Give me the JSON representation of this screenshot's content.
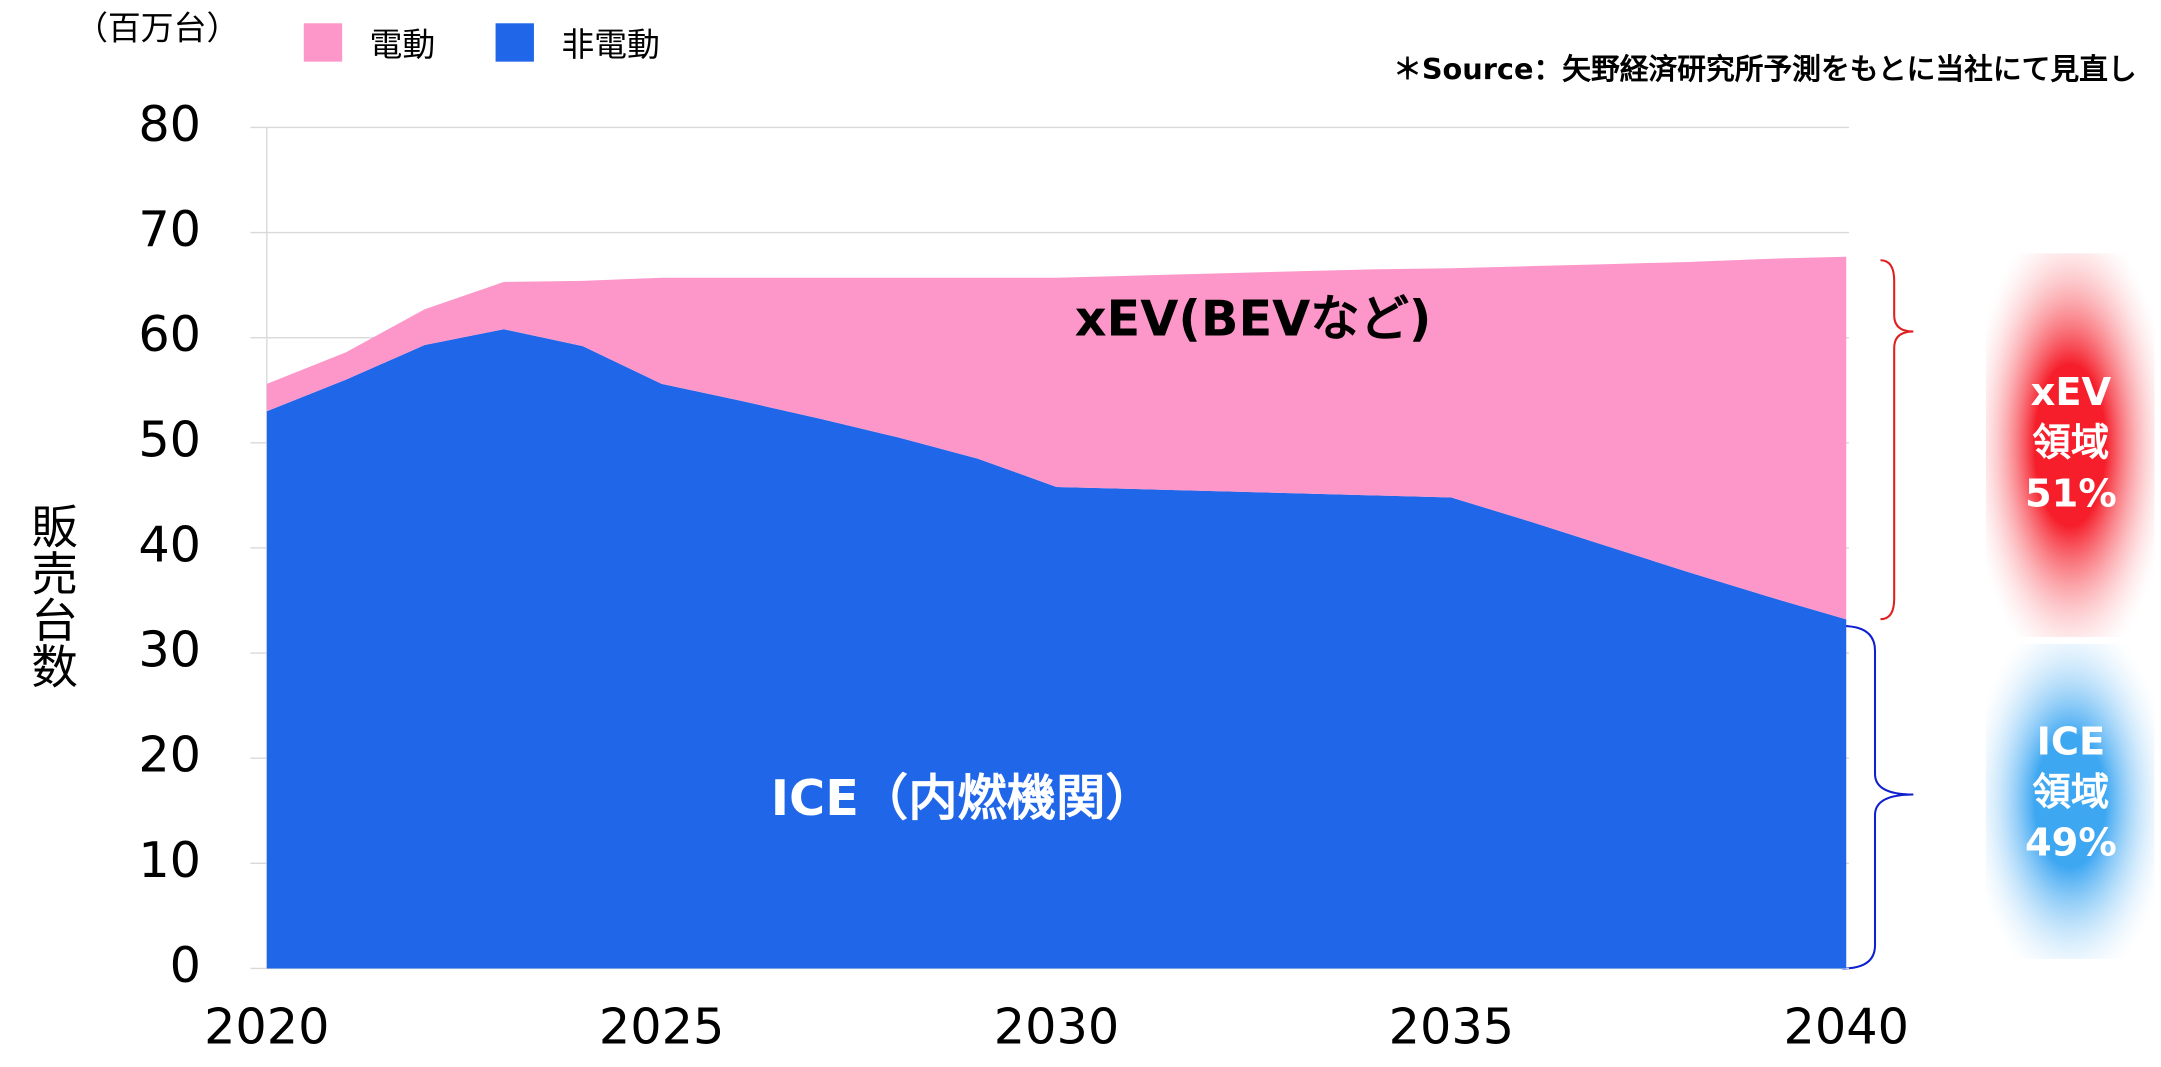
{
  "chart_data": {
    "type": "stacked_area",
    "unit_label": "（百万台）",
    "source": "＊Source：矢野経済研究所予測をもとに当社にて見直し",
    "y_label": "販売台数",
    "x": [
      2020,
      2021,
      2022,
      2023,
      2024,
      2025,
      2026,
      2027,
      2028,
      2029,
      2030,
      2031,
      2032,
      2033,
      2034,
      2035,
      2036,
      2037,
      2038,
      2039,
      2040
    ],
    "series": [
      {
        "name": "非電動",
        "color": "#1f66e8",
        "values": [
          53.0,
          56.0,
          59.3,
          60.8,
          59.2,
          55.6,
          54.0,
          52.3,
          50.5,
          48.5,
          45.8,
          45.6,
          45.4,
          45.2,
          45.0,
          44.8,
          42.5,
          40.1,
          37.7,
          35.4,
          33.2
        ]
      },
      {
        "name": "電動",
        "color": "#fd96c9",
        "values": [
          2.6,
          2.6,
          3.4,
          4.5,
          6.2,
          10.1,
          11.7,
          13.4,
          15.2,
          17.2,
          19.9,
          20.3,
          20.7,
          21.1,
          21.5,
          21.8,
          24.3,
          26.9,
          29.5,
          32.1,
          34.5
        ]
      }
    ],
    "legend_order": [
      1,
      0
    ],
    "xlim": [
      2020,
      2040
    ],
    "xticks": [
      2020,
      2025,
      2030,
      2035,
      2040
    ],
    "ylim": [
      0,
      80
    ],
    "yticks": [
      0,
      10,
      20,
      30,
      40,
      50,
      60,
      70,
      80
    ],
    "grid": true,
    "area_labels": [
      "ICE（内燃機関）",
      "xEV(BEVなど)"
    ],
    "side_labels": [
      [
        "xEV",
        "領域",
        "51%"
      ],
      [
        "ICE",
        "領域",
        "49%"
      ]
    ]
  }
}
